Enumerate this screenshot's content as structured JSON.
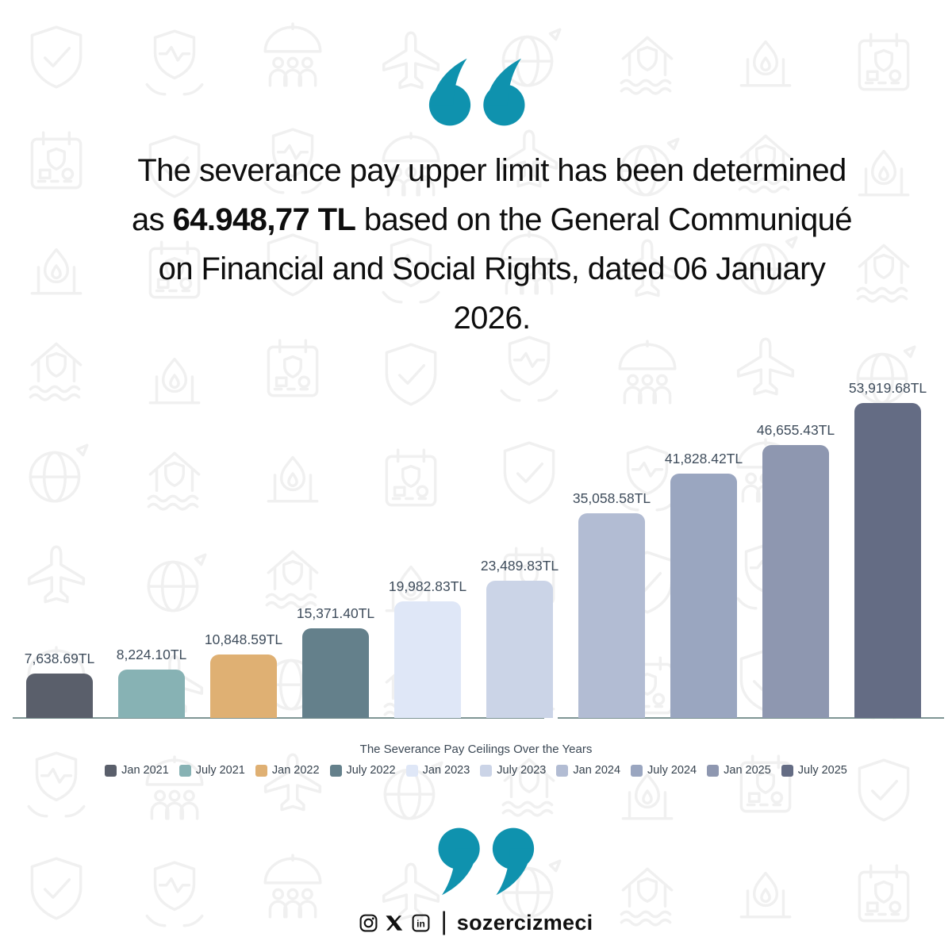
{
  "brand": {
    "accent_teal": "#0f92ae"
  },
  "quote": {
    "part1": "The severance pay upper limit has been determined as ",
    "highlight": "64.948,77 TL",
    "part2": " based on the General Communiqué on Financial and Social Rights, dated 06 January 2026."
  },
  "chart_data": {
    "type": "bar",
    "title": "The Severance Pay Ceilings Over the Years",
    "categories": [
      "Jan 2021",
      "July 2021",
      "Jan 2022",
      "July 2022",
      "Jan 2023",
      "July 2023",
      "Jan 2024",
      "July 2024",
      "Jan 2025",
      "July 2025"
    ],
    "values": [
      7638.69,
      8224.1,
      10848.59,
      15371.4,
      19982.83,
      23489.83,
      35058.58,
      41828.42,
      46655.43,
      53919.68
    ],
    "labels": [
      "7,638.69TL",
      "8,224.10TL",
      "10,848.59TL",
      "15,371.40TL",
      "19,982.83TL",
      "23,489.83TL",
      "35,058.58TL",
      "41,828.42TL",
      "46,655.43TL",
      "53,919.68TL"
    ],
    "colors": [
      "#5a5f6b",
      "#87b2b4",
      "#dfb073",
      "#64808b",
      "#dfe7f7",
      "#cbd4e7",
      "#b2bcd3",
      "#9aa6c0",
      "#8e97b0",
      "#646c84"
    ],
    "unit": "TL",
    "xlabel": "",
    "ylabel": "",
    "ylim": [
      0,
      55000
    ],
    "grid": false,
    "legend_position": "bottom",
    "value_labels": "above-bars"
  },
  "background": {
    "icons": [
      "shield-check-icon",
      "house-flood-icon",
      "umbrella-people-icon",
      "calendar-shield-icon",
      "globe-plane-icon",
      "heart-shield-hands-icon",
      "gas-fire-icon",
      "plane-icon"
    ]
  },
  "footer": {
    "icons": [
      "instagram-icon",
      "x-icon",
      "linkedin-icon"
    ],
    "separator": "|",
    "handle": "sozercizmeci"
  }
}
